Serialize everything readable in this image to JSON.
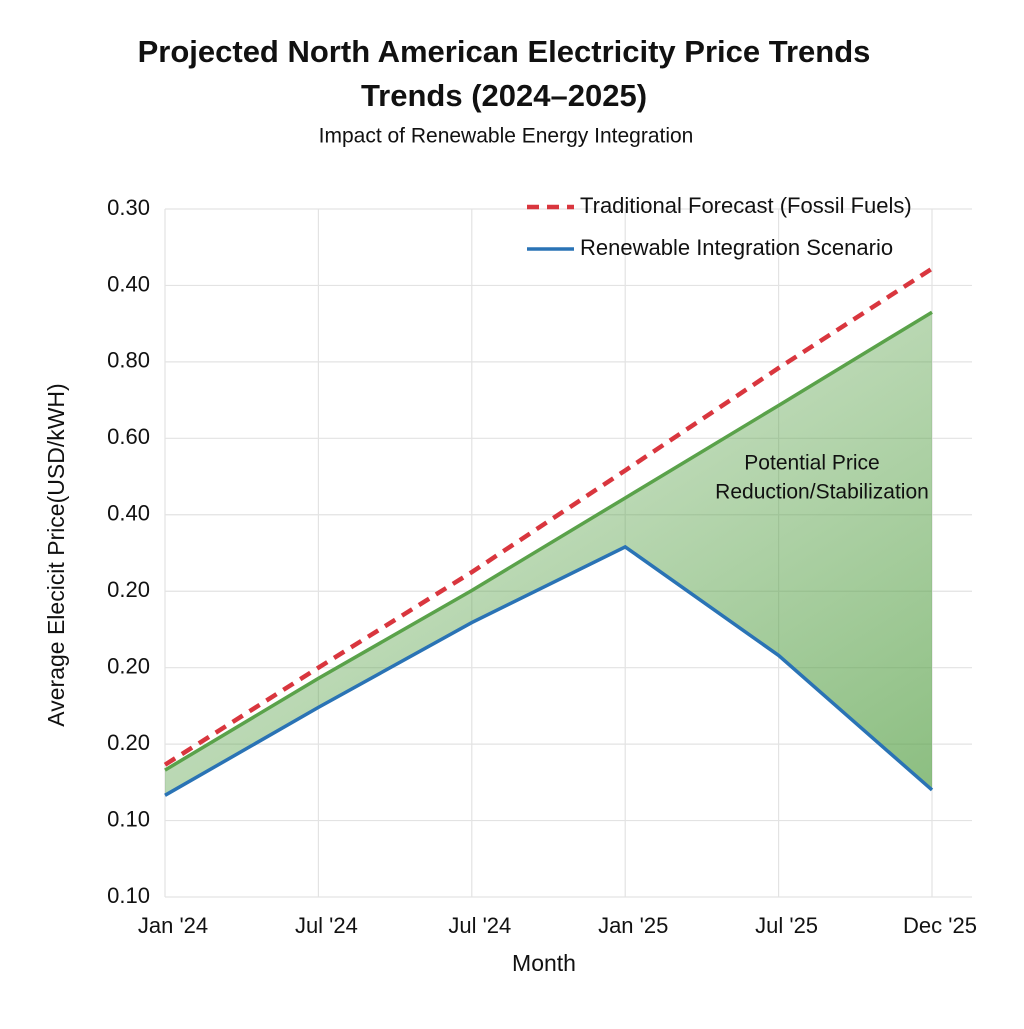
{
  "chart_data": {
    "type": "line",
    "title": [
      "Projected North American Electricity Price Trends",
      "Trends (2024–2025)"
    ],
    "subtitle": "Impact of Renewable Energy Integration",
    "x_label": "Month",
    "y_label": "Average Elecicit Price(USD/kWH)",
    "categories": [
      "Jan '24",
      "Jul '24",
      "Jul '24",
      "Jan '25",
      "Jul '25",
      "Dec '25"
    ],
    "ylim": [
      0,
      9
    ],
    "yticks": [
      {
        "value": 0,
        "label": "0.10"
      },
      {
        "value": 1,
        "label": "0.10"
      },
      {
        "value": 2,
        "label": "0.20"
      },
      {
        "value": 3,
        "label": "0.20"
      },
      {
        "value": 4,
        "label": "0.20"
      },
      {
        "value": 5,
        "label": "0.40"
      },
      {
        "value": 6,
        "label": "0.60"
      },
      {
        "value": 7,
        "label": "0.80"
      },
      {
        "value": 8,
        "label": "0.40"
      },
      {
        "value": 9,
        "label": "0.30"
      }
    ],
    "grid": true,
    "series": [
      {
        "name": "Traditional Forecast (Fossil Fuels)",
        "color": "#d9363e",
        "style": "dashed",
        "values": [
          1.73,
          3.0,
          4.25,
          5.58,
          6.92,
          8.22
        ]
      },
      {
        "name": "Renewable Integration Scenario",
        "color": "#2a73b5",
        "style": "solid",
        "values": [
          1.33,
          2.48,
          3.59,
          4.58,
          3.16,
          1.4
        ]
      },
      {
        "color": "#5aa24a",
        "style": "solid",
        "values": [
          1.66,
          2.86,
          4.01,
          5.22,
          6.43,
          7.65
        ]
      }
    ],
    "fill_color": "#5aa24a",
    "annotation": [
      "Potential Price",
      "Reduction/Stabilization"
    ]
  }
}
